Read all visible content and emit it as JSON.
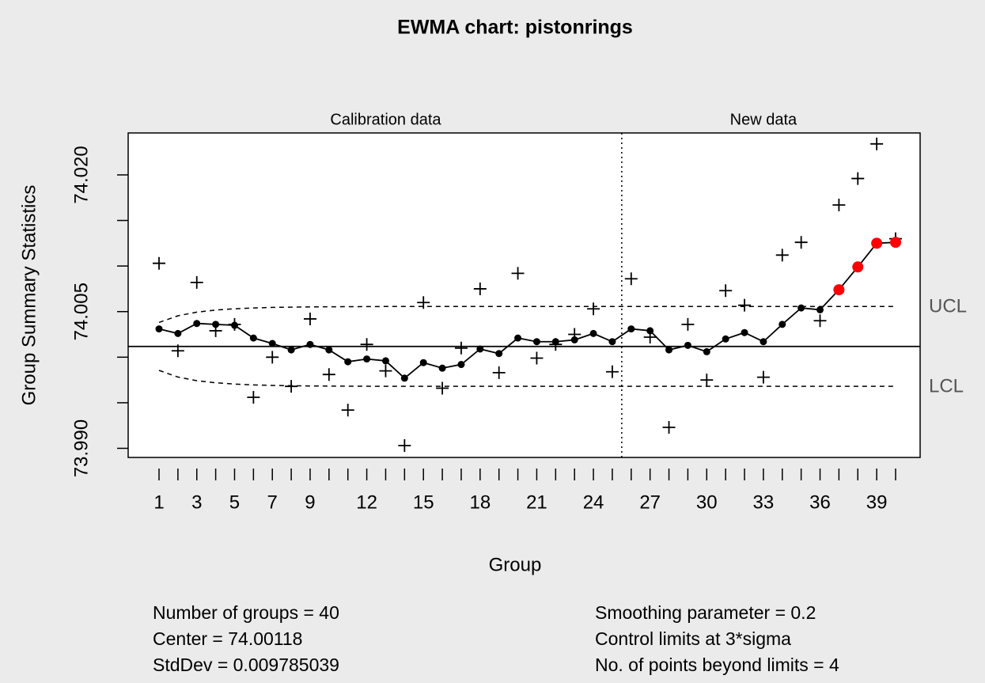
{
  "chart_data": {
    "type": "ewma",
    "title": "EWMA chart: pistonrings",
    "xlabel": "Group",
    "ylabel": "Group Summary Statistics",
    "phase_labels": [
      "Calibration data",
      "New data"
    ],
    "calibration_groups": 25,
    "categories": [
      "1",
      null,
      "3",
      null,
      "5",
      null,
      "7",
      null,
      "9",
      null,
      null,
      "12",
      null,
      null,
      "15",
      null,
      null,
      "18",
      null,
      null,
      "21",
      null,
      null,
      "24",
      null,
      null,
      "27",
      null,
      null,
      "30",
      null,
      null,
      "33",
      null,
      null,
      "36",
      null,
      null,
      "39",
      null
    ],
    "statistics": [
      74.0103,
      74.0007,
      74.0082,
      74.0029,
      74.0036,
      73.9956,
      74.0,
      73.9968,
      74.0042,
      73.9981,
      73.9942,
      74.0014,
      73.9985,
      73.9903,
      74.006,
      73.9966,
      74.001,
      74.0075,
      73.9983,
      74.0092,
      73.9999,
      74.0014,
      74.0025,
      74.0053,
      73.9984,
      74.0086,
      74.0022,
      73.9923,
      74.0036,
      73.9975,
      74.0073,
      74.0057,
      73.9978,
      74.0112,
      74.0126,
      74.004,
      74.0167,
      74.0196,
      74.0234,
      74.013
    ],
    "ewma": [
      74.0031,
      74.0026,
      74.0037,
      74.0036,
      74.0035,
      74.0021,
      74.0015,
      74.0008,
      74.0014,
      74.0008,
      73.9995,
      73.9998,
      73.9996,
      73.9977,
      73.9994,
      73.9988,
      73.9992,
      74.0009,
      74.0004,
      74.0021,
      74.0017,
      74.0017,
      74.0019,
      74.0026,
      74.0017,
      74.0031,
      74.0029,
      74.0008,
      74.0013,
      74.0006,
      74.002,
      74.0027,
      74.0017,
      74.0036,
      74.0054,
      74.0052,
      74.0074,
      74.0099,
      74.0125,
      74.0126
    ],
    "ewma_color": "#000000",
    "violation_color": "#ff0000",
    "violations": [
      37,
      38,
      39,
      40
    ],
    "center": 74.00118,
    "ucl": [
      74.00381,
      74.00454,
      74.00494,
      74.00517,
      74.00531,
      74.0054,
      74.00546,
      74.00549,
      74.00552,
      74.00553,
      74.00554,
      74.00555,
      74.00556,
      74.00556,
      74.00556,
      74.00556,
      74.00556,
      74.00556,
      74.00556,
      74.00556,
      74.00556,
      74.00556,
      74.00556,
      74.00556,
      74.00556,
      74.00556,
      74.00556,
      74.00556,
      74.00556,
      74.00556,
      74.00556,
      74.00556,
      74.00556,
      74.00556,
      74.00556,
      74.00556,
      74.00556,
      74.00556,
      74.00556,
      74.00556
    ],
    "lcl": [
      73.99855,
      73.99782,
      73.99742,
      73.99719,
      73.99705,
      73.99696,
      73.9969,
      73.99687,
      73.99684,
      73.99683,
      73.99682,
      73.99681,
      73.9968,
      73.9968,
      73.9968,
      73.9968,
      73.9968,
      73.9968,
      73.9968,
      73.9968,
      73.9968,
      73.9968,
      73.9968,
      73.9968,
      73.9968,
      73.9968,
      73.9968,
      73.9968,
      73.9968,
      73.9968,
      73.9968,
      73.9968,
      73.9968,
      73.9968,
      73.9968,
      73.9968,
      73.9968,
      73.9968,
      73.9968,
      73.9968
    ],
    "limit_labels": [
      "UCL",
      "LCL"
    ],
    "ylim": [
      73.989,
      74.0246
    ],
    "yticks": [
      {
        "value": 73.99,
        "label": "73.990"
      },
      {
        "value": 73.995,
        "label": null
      },
      {
        "value": 74.0,
        "label": null
      },
      {
        "value": 74.005,
        "label": "74.005"
      },
      {
        "value": 74.01,
        "label": null
      },
      {
        "value": 74.015,
        "label": null
      },
      {
        "value": 74.02,
        "label": "74.020"
      }
    ],
    "summary_left": [
      "Number of groups = 40",
      "Center = 74.00118",
      "StdDev = 0.009785039"
    ],
    "summary_right": [
      "Smoothing parameter =  0.2",
      "Control limits at 3*sigma",
      "No. of points beyond limits = 4"
    ]
  }
}
